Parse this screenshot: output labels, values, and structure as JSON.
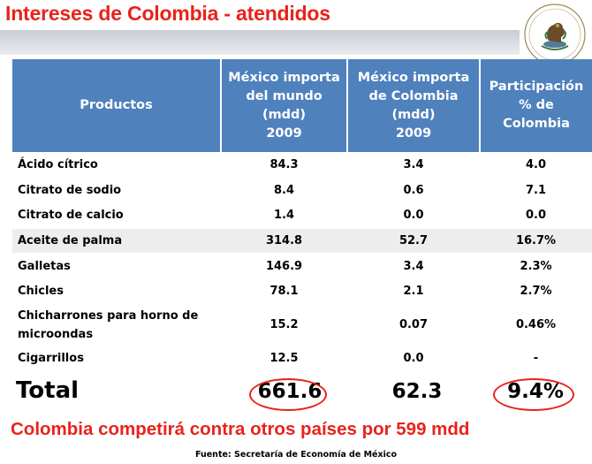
{
  "title": "Intereses de Colombia - atendidos",
  "table": {
    "headers": [
      [
        "Productos"
      ],
      [
        "México importa",
        "del mundo",
        "(mdd)",
        "2009"
      ],
      [
        "México  importa",
        "de Colombia",
        "(mdd)",
        "2009"
      ],
      [
        "Participación",
        "% de",
        "Colombia"
      ]
    ],
    "rows": [
      {
        "product": "Ácido cítrico",
        "world": "84.3",
        "colombia": "3.4",
        "share": "4.0"
      },
      {
        "product": "Citrato de sodio",
        "world": "8.4",
        "colombia": "0.6",
        "share": "7.1"
      },
      {
        "product": "Citrato de calcio",
        "world": "1.4",
        "colombia": "0.0",
        "share": "0.0"
      },
      {
        "product": "Aceite de palma",
        "world": "314.8",
        "colombia": "52.7",
        "share": "16.7%"
      },
      {
        "product": "Galletas",
        "world": "146.9",
        "colombia": "3.4",
        "share": "2.3%"
      },
      {
        "product": "Chicles",
        "world": "78.1",
        "colombia": "2.1",
        "share": "2.7%"
      },
      {
        "product": "Chicharrones para horno de microondas",
        "world": "15.2",
        "colombia": "0.07",
        "share": "0.46%"
      },
      {
        "product": "Cigarrillos",
        "world": "12.5",
        "colombia": "0.0",
        "share": "-"
      }
    ]
  },
  "total": {
    "label": "Total",
    "world": "661.6",
    "colombia": "62.3",
    "share": "9.4%"
  },
  "highlight": "Colombia competirá contra otros países por 599 mdd",
  "source": "Fuente: Secretaría de Economía de México",
  "colors": {
    "accent_red": "#e8231b",
    "header_blue": "#4f81bd",
    "row_stripe": "#ededed"
  },
  "icons": [
    "mexican-coat-of-arms-seal"
  ]
}
